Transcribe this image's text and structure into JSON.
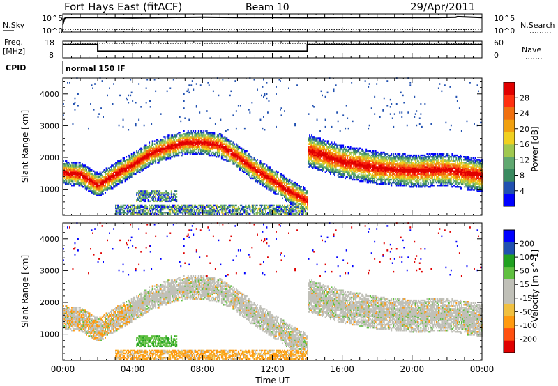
{
  "header": {
    "title": "Fort Hays East (fitACF)",
    "beam": "Beam 10",
    "date": "29/Apr/2011"
  },
  "side_labels": {
    "nsky": "N.Sky",
    "nsearch": "N.Search",
    "freq_line1": "Freq.",
    "freq_line2": "[MHz]",
    "nave": "Nave",
    "cpid": "CPID",
    "cpid_value": "normal 150 IF"
  },
  "noise_axis": {
    "left_ticks": [
      "10^5",
      "10^0"
    ],
    "right_ticks": [
      "10^5",
      "10^0"
    ]
  },
  "freq_axis": {
    "left_ticks": [
      "18",
      "8"
    ],
    "right_ticks": [
      "60",
      "0"
    ]
  },
  "time_axis": {
    "label": "Time UT",
    "ticks": [
      "00:00",
      "04:00",
      "08:00",
      "12:00",
      "16:00",
      "20:00",
      "00:00"
    ]
  },
  "colors": {
    "power": [
      "#0000ff",
      "#2050b0",
      "#3a8a60",
      "#60a870",
      "#a0c850",
      "#f0d020",
      "#f0a010",
      "#f07010",
      "#ff3010",
      "#e00000"
    ],
    "velocity": [
      "#e00000",
      "#ff5010",
      "#ff9a10",
      "#f0c040",
      "#c0c0b8",
      "#c0c0b8",
      "#60c040",
      "#20a020",
      "#2050b0",
      "#0000ff"
    ]
  },
  "chart_data": [
    {
      "type": "line",
      "panel": "noise",
      "x_unit": "hours UT",
      "xlim": [
        0,
        24
      ],
      "series": [
        {
          "name": "N.Sky",
          "x": [
            0,
            0.1,
            0.2,
            2,
            4,
            6,
            8,
            10,
            12,
            14,
            16,
            18,
            20,
            21.5,
            22.5,
            22.6,
            24
          ],
          "y": [
            0.4,
            0.75,
            0.8,
            0.8,
            0.78,
            0.8,
            0.82,
            0.8,
            0.8,
            0.79,
            0.8,
            0.8,
            0.8,
            0.8,
            0.82,
            0.85,
            0.8
          ]
        },
        {
          "name": "N.Search",
          "x": [
            0,
            24
          ],
          "y": [
            0.15,
            0.15
          ]
        }
      ]
    },
    {
      "type": "line",
      "panel": "frequency",
      "x_unit": "hours UT",
      "xlim": [
        0,
        24
      ],
      "ylim": [
        8,
        18
      ],
      "series": [
        {
          "name": "Freq.",
          "x": [
            0,
            2,
            2,
            14,
            14,
            24
          ],
          "y": [
            16,
            16,
            12,
            12,
            16,
            16
          ]
        },
        {
          "name": "Nave",
          "x": [
            0,
            24
          ],
          "y": [
            16.8,
            16.8
          ]
        }
      ]
    },
    {
      "type": "heatmap",
      "title": "",
      "panel": "power",
      "ylabel": "Slant Range [km]",
      "xlabel": "Time UT",
      "x_unit": "hours UT",
      "xlim": [
        0,
        24
      ],
      "ylim": [
        180,
        4500
      ],
      "yticks": [
        "1000",
        "2000",
        "3000",
        "4000"
      ],
      "colorbar": {
        "label": "Power [dB]",
        "ticks": [
          "4",
          "8",
          "12",
          "16",
          "20",
          "24",
          "28"
        ]
      },
      "features": [
        {
          "desc": "main echo band",
          "t": [
            0,
            1,
            2,
            3,
            4,
            5,
            6,
            7,
            8,
            9,
            10,
            11,
            12,
            13,
            14
          ],
          "range_km": [
            1500,
            1450,
            1100,
            1450,
            1750,
            2100,
            2300,
            2450,
            2450,
            2350,
            2000,
            1600,
            1250,
            900,
            600
          ]
        },
        {
          "desc": "post-14UT band",
          "t": [
            14,
            16,
            18,
            20,
            22,
            24
          ],
          "range_km": [
            2200,
            1850,
            1650,
            1550,
            1600,
            1400
          ]
        }
      ]
    },
    {
      "type": "heatmap",
      "title": "",
      "panel": "velocity",
      "ylabel": "Slant Range [km]",
      "xlabel": "Time UT",
      "x_unit": "hours UT",
      "xlim": [
        0,
        24
      ],
      "ylim": [
        180,
        4500
      ],
      "yticks": [
        "1000",
        "2000",
        "3000",
        "4000"
      ],
      "colorbar": {
        "label": "Velocity [m s^-1]",
        "ticks": [
          "200",
          "100",
          "50",
          "15",
          "-15",
          "-50",
          "-100",
          "-200"
        ]
      }
    }
  ]
}
